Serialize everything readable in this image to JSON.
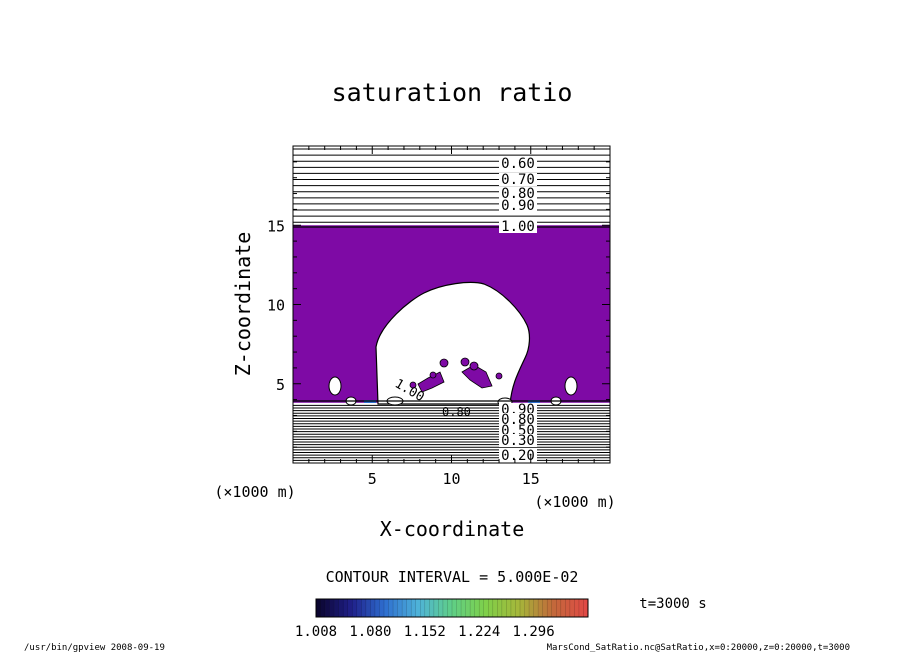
{
  "chart_data": {
    "type": "heatmap",
    "title": "saturation ratio",
    "xlabel": "X-coordinate",
    "ylabel": "Z-coordinate",
    "x_unit_label": "(×1000 m)",
    "y_unit_label": "(×1000 m)",
    "xlim": [
      0,
      20
    ],
    "ylim": [
      0,
      20
    ],
    "x_ticks": [
      "5",
      "10",
      "15"
    ],
    "y_ticks": [
      "5",
      "10",
      "15"
    ],
    "contour_interval_label": "CONTOUR INTERVAL = 5.000E-02",
    "upper_contour_labels": [
      "0.60",
      "0.70",
      "0.80",
      "0.90",
      "1.00"
    ],
    "lower_contour_labels": [
      "0.90",
      "0.80",
      "0.50",
      "0.30",
      "0.20"
    ],
    "interior_contour_labels": [
      "1.00",
      "0.80"
    ],
    "upper_contour_levels": [
      0.4,
      0.45,
      0.5,
      0.55,
      0.6,
      0.65,
      0.7,
      0.75,
      0.8,
      0.85,
      0.9,
      0.95,
      1.0
    ],
    "supersaturated_region": {
      "z_bottom": 3.8,
      "z_top": 15.0,
      "fill_color": "#7e0aa5"
    },
    "cloud_dome": {
      "x_left": 5.2,
      "x_right": 14.7,
      "z_top": 11.5,
      "z_base": 3.8
    },
    "colorbar": {
      "tick_labels": [
        "1.008",
        "1.080",
        "1.152",
        "1.224",
        "1.296"
      ],
      "range": [
        1.008,
        1.368
      ],
      "colors": [
        "#0b0530",
        "#20208a",
        "#2e6fd0",
        "#4fb3d8",
        "#5fcf86",
        "#7fd04a",
        "#a5b73a",
        "#c16a3a",
        "#e04a45"
      ]
    },
    "time_label": "t=3000 s"
  },
  "footer": {
    "left": "/usr/bin/gpview   2008-09-19",
    "right": "MarsCond_SatRatio.nc@SatRatio,x=0:20000,z=0:20000,t=3000"
  }
}
